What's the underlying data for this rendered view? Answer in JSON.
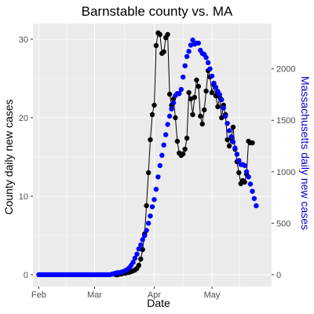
{
  "chart_data": {
    "type": "line",
    "title": "Barnstable county vs. MA",
    "xlabel": "Date",
    "ylabel_left": "County daily new cases",
    "ylabel_right": "Massachusetts daily new cases",
    "colors": {
      "panel": "#ebebeb",
      "grid": "#ffffff",
      "county": "#000000",
      "ma": "#0000ff",
      "right_axis_title": "#0000cc"
    },
    "x_range": [
      "2020-01-29",
      "2020-06-01"
    ],
    "x_ticks": [
      {
        "date": "2020-02-01",
        "label": "Feb"
      },
      {
        "date": "2020-03-01",
        "label": "Mar"
      },
      {
        "date": "2020-04-01",
        "label": "Apr"
      },
      {
        "date": "2020-05-01",
        "label": "May"
      }
    ],
    "y_left": {
      "range": [
        -1.5,
        32
      ],
      "ticks": [
        0,
        10,
        20,
        30
      ]
    },
    "y_right": {
      "range": [
        -115,
        2440
      ],
      "ticks": [
        0,
        500,
        1000,
        1500,
        2000
      ]
    },
    "grid": true,
    "series": [
      {
        "name": "",
        "axis": "left",
        "style": "line+points",
        "color": "#000000",
        "points": [
          [
            "2020-03-12",
            0
          ],
          [
            "2020-03-13",
            0
          ],
          [
            "2020-03-14",
            0.1
          ],
          [
            "2020-03-15",
            0.1
          ],
          [
            "2020-03-16",
            0.2
          ],
          [
            "2020-03-17",
            0.2
          ],
          [
            "2020-03-18",
            0.3
          ],
          [
            "2020-03-19",
            0.3
          ],
          [
            "2020-03-20",
            0.4
          ],
          [
            "2020-03-21",
            0.5
          ],
          [
            "2020-03-22",
            0.6
          ],
          [
            "2020-03-23",
            0.8
          ],
          [
            "2020-03-24",
            1.2
          ],
          [
            "2020-03-25",
            2.0
          ],
          [
            "2020-03-26",
            3.2
          ],
          [
            "2020-03-27",
            5.2
          ],
          [
            "2020-03-28",
            8.8
          ],
          [
            "2020-03-29",
            13.0
          ],
          [
            "2020-03-30",
            17.2
          ],
          [
            "2020-03-31",
            20.4
          ],
          [
            "2020-04-01",
            21.6
          ],
          [
            "2020-04-02",
            29.2
          ],
          [
            "2020-04-03",
            30.8
          ],
          [
            "2020-04-04",
            30.6
          ],
          [
            "2020-04-05",
            28.2
          ],
          [
            "2020-04-06",
            28.4
          ],
          [
            "2020-04-07",
            30.2
          ],
          [
            "2020-04-08",
            30.6
          ],
          [
            "2020-04-09",
            23.0
          ],
          [
            "2020-04-10",
            21.6
          ],
          [
            "2020-04-11",
            22.4
          ],
          [
            "2020-04-12",
            20.0
          ],
          [
            "2020-04-13",
            17.0
          ],
          [
            "2020-04-14",
            15.5
          ],
          [
            "2020-04-15",
            15.2
          ],
          [
            "2020-04-16",
            15.4
          ],
          [
            "2020-04-17",
            16.0
          ],
          [
            "2020-04-18",
            17.4
          ],
          [
            "2020-04-19",
            23.2
          ],
          [
            "2020-04-20",
            22.4
          ],
          [
            "2020-04-21",
            20.4
          ],
          [
            "2020-04-22",
            22.6
          ],
          [
            "2020-04-23",
            24.8
          ],
          [
            "2020-04-24",
            24.0
          ],
          [
            "2020-04-25",
            20.2
          ],
          [
            "2020-04-26",
            19.2
          ],
          [
            "2020-04-27",
            21.0
          ],
          [
            "2020-04-28",
            23.4
          ],
          [
            "2020-04-29",
            26.0
          ],
          [
            "2020-04-30",
            25.2
          ],
          [
            "2020-05-01",
            23.2
          ],
          [
            "2020-05-02",
            24.2
          ],
          [
            "2020-05-03",
            22.8
          ],
          [
            "2020-05-04",
            21.4
          ],
          [
            "2020-05-05",
            22.6
          ],
          [
            "2020-05-06",
            20.0
          ],
          [
            "2020-05-07",
            21.6
          ],
          [
            "2020-05-08",
            20.4
          ],
          [
            "2020-05-09",
            17.2
          ],
          [
            "2020-05-10",
            16.4
          ],
          [
            "2020-05-11",
            17.4
          ],
          [
            "2020-05-12",
            18.8
          ],
          [
            "2020-05-13",
            16.0
          ],
          [
            "2020-05-14",
            14.4
          ],
          [
            "2020-05-15",
            13.0
          ],
          [
            "2020-05-16",
            11.6
          ],
          [
            "2020-05-17",
            12.0
          ],
          [
            "2020-05-18",
            11.8
          ],
          [
            "2020-05-19",
            12.8
          ],
          [
            "2020-05-20",
            17.0
          ],
          [
            "2020-05-21",
            16.8
          ],
          [
            "2020-05-22",
            16.8
          ]
        ]
      },
      {
        "name": "",
        "axis": "right",
        "style": "points",
        "color": "#0000ff",
        "points": [
          [
            "2020-02-01",
            0
          ],
          [
            "2020-02-02",
            0
          ],
          [
            "2020-02-03",
            0
          ],
          [
            "2020-02-04",
            0
          ],
          [
            "2020-02-05",
            0
          ],
          [
            "2020-02-06",
            0
          ],
          [
            "2020-02-07",
            0
          ],
          [
            "2020-02-08",
            0
          ],
          [
            "2020-02-09",
            0
          ],
          [
            "2020-02-10",
            0
          ],
          [
            "2020-02-11",
            0
          ],
          [
            "2020-02-12",
            0
          ],
          [
            "2020-02-13",
            0
          ],
          [
            "2020-02-14",
            0
          ],
          [
            "2020-02-15",
            0
          ],
          [
            "2020-02-16",
            0
          ],
          [
            "2020-02-17",
            0
          ],
          [
            "2020-02-18",
            0
          ],
          [
            "2020-02-19",
            0
          ],
          [
            "2020-02-20",
            0
          ],
          [
            "2020-02-21",
            0
          ],
          [
            "2020-02-22",
            0
          ],
          [
            "2020-02-23",
            0
          ],
          [
            "2020-02-24",
            0
          ],
          [
            "2020-02-25",
            0
          ],
          [
            "2020-02-26",
            0
          ],
          [
            "2020-02-27",
            0
          ],
          [
            "2020-02-28",
            0
          ],
          [
            "2020-02-29",
            0
          ],
          [
            "2020-03-01",
            0
          ],
          [
            "2020-03-02",
            0
          ],
          [
            "2020-03-03",
            0
          ],
          [
            "2020-03-04",
            0
          ],
          [
            "2020-03-05",
            0
          ],
          [
            "2020-03-06",
            0
          ],
          [
            "2020-03-07",
            0
          ],
          [
            "2020-03-08",
            0
          ],
          [
            "2020-03-09",
            0
          ],
          [
            "2020-03-10",
            5
          ],
          [
            "2020-03-11",
            10
          ],
          [
            "2020-03-12",
            15
          ],
          [
            "2020-03-13",
            20
          ],
          [
            "2020-03-14",
            20
          ],
          [
            "2020-03-15",
            25
          ],
          [
            "2020-03-16",
            30
          ],
          [
            "2020-03-17",
            40
          ],
          [
            "2020-03-18",
            50
          ],
          [
            "2020-03-19",
            65
          ],
          [
            "2020-03-20",
            90
          ],
          [
            "2020-03-21",
            120
          ],
          [
            "2020-03-22",
            160
          ],
          [
            "2020-03-23",
            200
          ],
          [
            "2020-03-24",
            250
          ],
          [
            "2020-03-25",
            290
          ],
          [
            "2020-03-26",
            340
          ],
          [
            "2020-03-27",
            380
          ],
          [
            "2020-03-28",
            430
          ],
          [
            "2020-03-29",
            500
          ],
          [
            "2020-03-30",
            570
          ],
          [
            "2020-03-31",
            660
          ],
          [
            "2020-04-01",
            730
          ],
          [
            "2020-04-02",
            830
          ],
          [
            "2020-04-03",
            950
          ],
          [
            "2020-04-04",
            1060
          ],
          [
            "2020-04-05",
            1160
          ],
          [
            "2020-04-06",
            1260
          ],
          [
            "2020-04-07",
            1360
          ],
          [
            "2020-04-08",
            1460
          ],
          [
            "2020-04-09",
            1540
          ],
          [
            "2020-04-10",
            1610
          ],
          [
            "2020-04-11",
            1670
          ],
          [
            "2020-04-12",
            1740
          ],
          [
            "2020-04-13",
            1760
          ],
          [
            "2020-04-14",
            1760
          ],
          [
            "2020-04-15",
            1800
          ],
          [
            "2020-04-16",
            1920
          ],
          [
            "2020-04-17",
            2030
          ],
          [
            "2020-04-18",
            2120
          ],
          [
            "2020-04-19",
            2170
          ],
          [
            "2020-04-20",
            2230
          ],
          [
            "2020-04-21",
            2280
          ],
          [
            "2020-04-22",
            2240
          ],
          [
            "2020-04-23",
            2250
          ],
          [
            "2020-04-24",
            2250
          ],
          [
            "2020-04-25",
            2180
          ],
          [
            "2020-04-26",
            2150
          ],
          [
            "2020-04-27",
            2140
          ],
          [
            "2020-04-28",
            2110
          ],
          [
            "2020-04-29",
            2060
          ],
          [
            "2020-04-30",
            2000
          ],
          [
            "2020-05-01",
            1930
          ],
          [
            "2020-05-02",
            1860
          ],
          [
            "2020-05-03",
            1820
          ],
          [
            "2020-05-04",
            1780
          ],
          [
            "2020-05-05",
            1750
          ],
          [
            "2020-05-06",
            1700
          ],
          [
            "2020-05-07",
            1620
          ],
          [
            "2020-05-08",
            1540
          ],
          [
            "2020-05-09",
            1470
          ],
          [
            "2020-05-10",
            1400
          ],
          [
            "2020-05-11",
            1340
          ],
          [
            "2020-05-12",
            1290
          ],
          [
            "2020-05-13",
            1230
          ],
          [
            "2020-05-14",
            1170
          ],
          [
            "2020-05-15",
            1110
          ],
          [
            "2020-05-16",
            1070
          ],
          [
            "2020-05-17",
            1070
          ],
          [
            "2020-05-18",
            1060
          ],
          [
            "2020-05-19",
            1000
          ],
          [
            "2020-05-20",
            950
          ],
          [
            "2020-05-21",
            880
          ],
          [
            "2020-05-22",
            810
          ],
          [
            "2020-05-23",
            740
          ],
          [
            "2020-05-24",
            670
          ]
        ]
      }
    ]
  }
}
